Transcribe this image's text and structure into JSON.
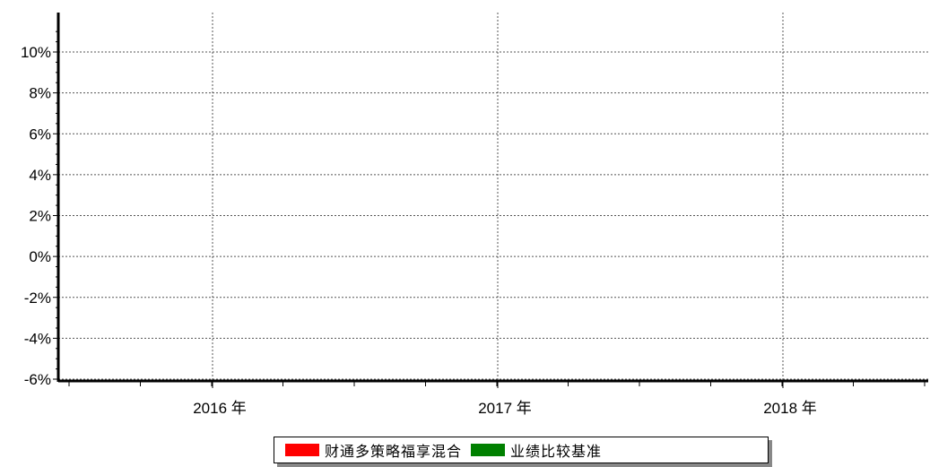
{
  "chart_data": {
    "type": "line",
    "title": "",
    "xlabel": "",
    "ylabel": "",
    "ylim": [
      -6,
      11
    ],
    "y_ticks": [
      10,
      8,
      6,
      4,
      2,
      0,
      -2,
      -4,
      -6
    ],
    "y_tick_labels": [
      "10%",
      "8%",
      "6%",
      "4%",
      "2%",
      "0%",
      "-2%",
      "-4%",
      "-6%"
    ],
    "x_tick_labels": [
      "2016 年",
      "2017 年",
      "2018 年"
    ],
    "grid": true,
    "legend_position": "bottom",
    "series": [
      {
        "name": "财通多策略福享混合",
        "color": "#ff0000",
        "values": []
      },
      {
        "name": "业绩比较基准",
        "color": "#008000",
        "values": []
      }
    ]
  },
  "legend": {
    "items": [
      {
        "label": "财通多策略福享混合",
        "color": "#ff0000"
      },
      {
        "label": "业绩比较基准",
        "color": "#008000"
      }
    ]
  }
}
